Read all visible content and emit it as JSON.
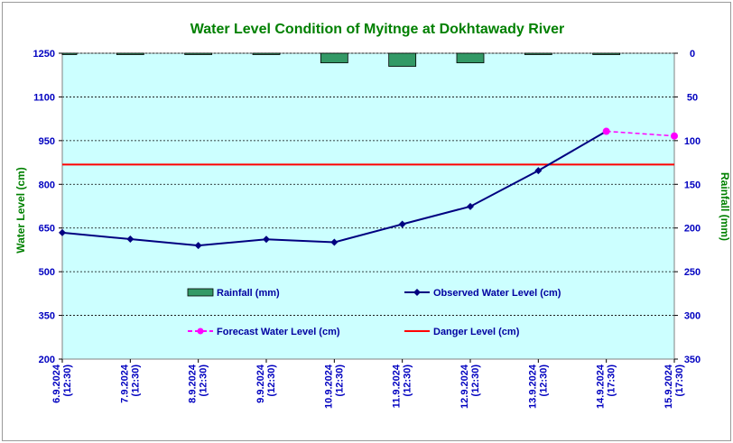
{
  "chart_data": {
    "type": "line",
    "title": "Water Level Condition of Myitnge at Dokhtawady River",
    "ylabel": "Water Level (cm)",
    "y2label": "Rainfall (mm)",
    "ylim": [
      200,
      1250
    ],
    "yticks": [
      200,
      350,
      500,
      650,
      800,
      950,
      1100,
      1250
    ],
    "y2lim": [
      0,
      350
    ],
    "y2ticks": [
      0,
      50,
      100,
      150,
      200,
      250,
      300,
      350
    ],
    "y2_inverted": true,
    "categories": [
      {
        "date": "6.9.2024",
        "time": "(12:30)"
      },
      {
        "date": "7.9.2024",
        "time": "(12:30)"
      },
      {
        "date": "8.9.2024",
        "time": "(12:30)"
      },
      {
        "date": "9.9.2024",
        "time": "(12:30)"
      },
      {
        "date": "10.9.2024",
        "time": "(12:30)"
      },
      {
        "date": "11.9.2024",
        "time": "(12:30)"
      },
      {
        "date": "12.9.2024",
        "time": "(12:30)"
      },
      {
        "date": "13.9.2024",
        "time": "(12:30)"
      },
      {
        "date": "14.9.2024",
        "time": "(17:30)"
      },
      {
        "date": "15.9.2024",
        "time": "(17:30)"
      }
    ],
    "series": [
      {
        "name": "Rainfall (mm)",
        "kind": "bar",
        "axis": "right",
        "color": "#339966",
        "values": [
          1,
          1,
          0,
          0.5,
          11,
          15,
          11,
          1,
          1,
          null
        ]
      },
      {
        "name": "Observed Water Level (cm)",
        "kind": "line",
        "axis": "left",
        "color": "#000080",
        "values": [
          634,
          612,
          590,
          611,
          601,
          663,
          724,
          847,
          null,
          null
        ]
      },
      {
        "name": "Forecast Water Level (cm)",
        "kind": "line-dashed",
        "axis": "left",
        "color": "#ff00ff",
        "values": [
          null,
          null,
          null,
          null,
          null,
          null,
          null,
          null,
          982,
          966
        ]
      },
      {
        "name": "Danger Level (cm)",
        "kind": "hline",
        "axis": "left",
        "color": "#ff0000",
        "value": 868
      }
    ],
    "plot_background": "#ccffff",
    "grid": true,
    "legend_position": "lower-center"
  }
}
